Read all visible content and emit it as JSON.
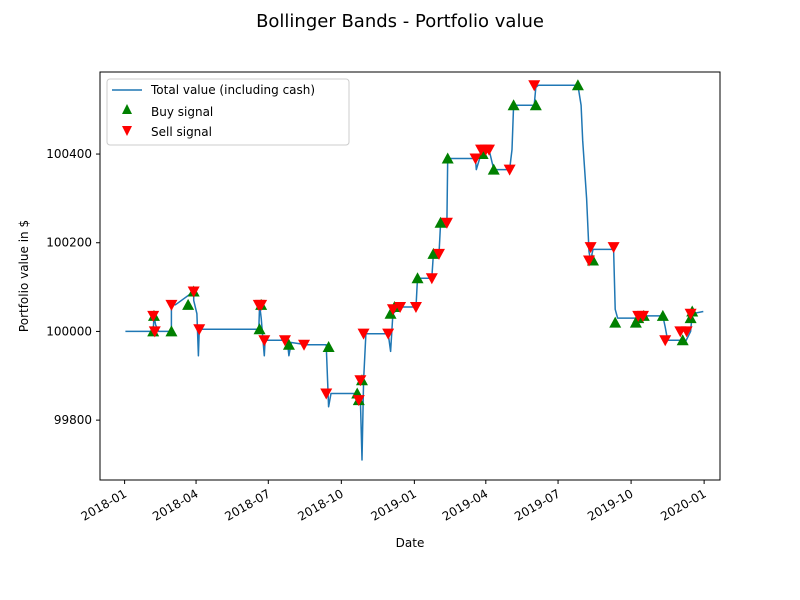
{
  "chart_data": {
    "type": "line",
    "title": "Bollinger Bands - Portfolio value",
    "xlabel": "Date",
    "ylabel": "Portfolio value in $",
    "xlim": [
      "2017-12-01",
      "2020-01-21"
    ],
    "ylim": [
      99665,
      100585
    ],
    "x_ticks": [
      "2018-01",
      "2018-04",
      "2018-07",
      "2018-10",
      "2019-01",
      "2019-04",
      "2019-07",
      "2019-10",
      "2020-01"
    ],
    "y_ticks": [
      99800,
      100000,
      100200,
      100400
    ],
    "grid": false,
    "legend": {
      "placement": "upper-left",
      "entries": [
        "Total value (including cash)",
        "Buy signal",
        "Sell signal"
      ]
    },
    "colors": {
      "line": "#1f77b4",
      "buy": "#008000",
      "sell": "#ff0000"
    },
    "series": [
      {
        "name": "Total value (including cash)",
        "x": [
          "2018-01-02",
          "2018-02-06",
          "2018-02-07",
          "2018-02-09",
          "2018-02-13",
          "2018-03-01",
          "2018-03-01",
          "2018-03-06",
          "2018-03-29",
          "2018-03-29",
          "2018-04-02",
          "2018-04-04",
          "2018-04-05",
          "2018-04-06",
          "2018-06-19",
          "2018-06-20",
          "2018-06-22",
          "2018-06-26",
          "2018-06-27",
          "2018-07-09",
          "2018-07-25",
          "2018-07-27",
          "2018-07-30",
          "2018-08-18",
          "2018-08-22",
          "2018-09-12",
          "2018-09-15",
          "2018-09-18",
          "2018-10-23",
          "2018-10-25",
          "2018-10-27",
          "2018-10-29",
          "2018-11-01",
          "2018-11-03",
          "2018-11-29",
          "2018-12-02",
          "2018-12-05",
          "2018-12-14",
          "2019-01-03",
          "2019-01-05",
          "2019-01-23",
          "2019-01-25",
          "2019-02-01",
          "2019-02-03",
          "2019-02-11",
          "2019-02-12",
          "2019-03-19",
          "2019-03-20",
          "2019-03-26",
          "2019-03-28",
          "2019-04-05",
          "2019-04-09",
          "2019-04-11",
          "2019-05-01",
          "2019-05-04",
          "2019-05-06",
          "2019-06-01",
          "2019-06-03",
          "2019-06-06",
          "2019-07-26",
          "2019-07-30",
          "2019-08-01",
          "2019-08-06",
          "2019-08-09",
          "2019-08-11",
          "2019-08-14",
          "2019-09-09",
          "2019-09-11",
          "2019-09-14",
          "2019-10-07",
          "2019-10-13",
          "2019-10-16",
          "2019-11-10",
          "2019-11-13",
          "2019-11-16",
          "2019-12-05",
          "2019-12-08",
          "2019-12-15",
          "2019-12-17",
          "2019-12-31"
        ],
        "y": [
          100000,
          100000,
          100035,
          100015,
          100000,
          100000,
          100060,
          100060,
          100090,
          100070,
          100040,
          99945,
          100000,
          100005,
          100005,
          100060,
          100030,
          99945,
          99980,
          99980,
          99980,
          99945,
          99975,
          99970,
          99970,
          99970,
          99830,
          99860,
          99860,
          99845,
          99710,
          99890,
          99995,
          99995,
          99995,
          99955,
          100040,
          100055,
          100055,
          100120,
          100120,
          100175,
          100175,
          100245,
          100245,
          100390,
          100390,
          100365,
          100400,
          100410,
          100410,
          100380,
          100365,
          100365,
          100410,
          100510,
          100510,
          100550,
          100555,
          100555,
          100510,
          100430,
          100300,
          100180,
          100160,
          100185,
          100185,
          100050,
          100030,
          100030,
          100030,
          100035,
          100035,
          100010,
          99980,
          99980,
          99975,
          100000,
          100040,
          100045
        ]
      }
    ],
    "buy_signals": {
      "name": "Buy signal",
      "x": [
        "2018-02-06",
        "2018-02-07",
        "2018-03-01",
        "2018-03-22",
        "2018-03-29",
        "2018-06-20",
        "2018-06-22",
        "2018-07-27",
        "2018-09-15",
        "2018-10-21",
        "2018-10-23",
        "2018-10-27",
        "2018-12-02",
        "2018-12-07",
        "2019-01-05",
        "2019-01-25",
        "2019-02-03",
        "2019-02-12",
        "2019-03-28",
        "2019-04-11",
        "2019-05-06",
        "2019-06-03",
        "2019-07-26",
        "2019-08-14",
        "2019-09-11",
        "2019-10-07",
        "2019-10-10",
        "2019-10-17",
        "2019-11-10",
        "2019-12-05",
        "2019-12-15",
        "2019-12-17"
      ],
      "values": [
        100000,
        100035,
        100000,
        100060,
        100090,
        100005,
        100060,
        99970,
        99965,
        99860,
        99845,
        99890,
        100040,
        100055,
        100120,
        100175,
        100245,
        100390,
        100400,
        100365,
        100510,
        100510,
        100555,
        100160,
        100020,
        100020,
        100030,
        100035,
        100035,
        99980,
        100030,
        100045
      ]
    },
    "sell_signals": {
      "name": "Sell signal",
      "x": [
        "2018-02-06",
        "2018-02-08",
        "2018-03-01",
        "2018-03-29",
        "2018-04-05",
        "2018-06-19",
        "2018-06-22",
        "2018-06-26",
        "2018-07-22",
        "2018-08-15",
        "2018-09-12",
        "2018-10-23",
        "2018-10-25",
        "2018-10-29",
        "2018-11-29",
        "2018-12-05",
        "2018-12-14",
        "2019-01-03",
        "2019-01-23",
        "2019-02-01",
        "2019-02-11",
        "2019-03-19",
        "2019-03-26",
        "2019-04-01",
        "2019-04-05",
        "2019-05-01",
        "2019-06-01",
        "2019-08-09",
        "2019-08-11",
        "2019-09-09",
        "2019-10-10",
        "2019-10-16",
        "2019-11-13",
        "2019-12-02",
        "2019-12-10",
        "2019-12-15"
      ],
      "values": [
        100035,
        100000,
        100060,
        100090,
        100005,
        100060,
        100060,
        99980,
        99980,
        99970,
        99860,
        99845,
        99890,
        99995,
        99995,
        100050,
        100055,
        100055,
        100120,
        100175,
        100245,
        100390,
        100410,
        100410,
        100410,
        100365,
        100555,
        100160,
        100190,
        100190,
        100035,
        100035,
        99980,
        100000,
        100000,
        100040
      ]
    }
  }
}
